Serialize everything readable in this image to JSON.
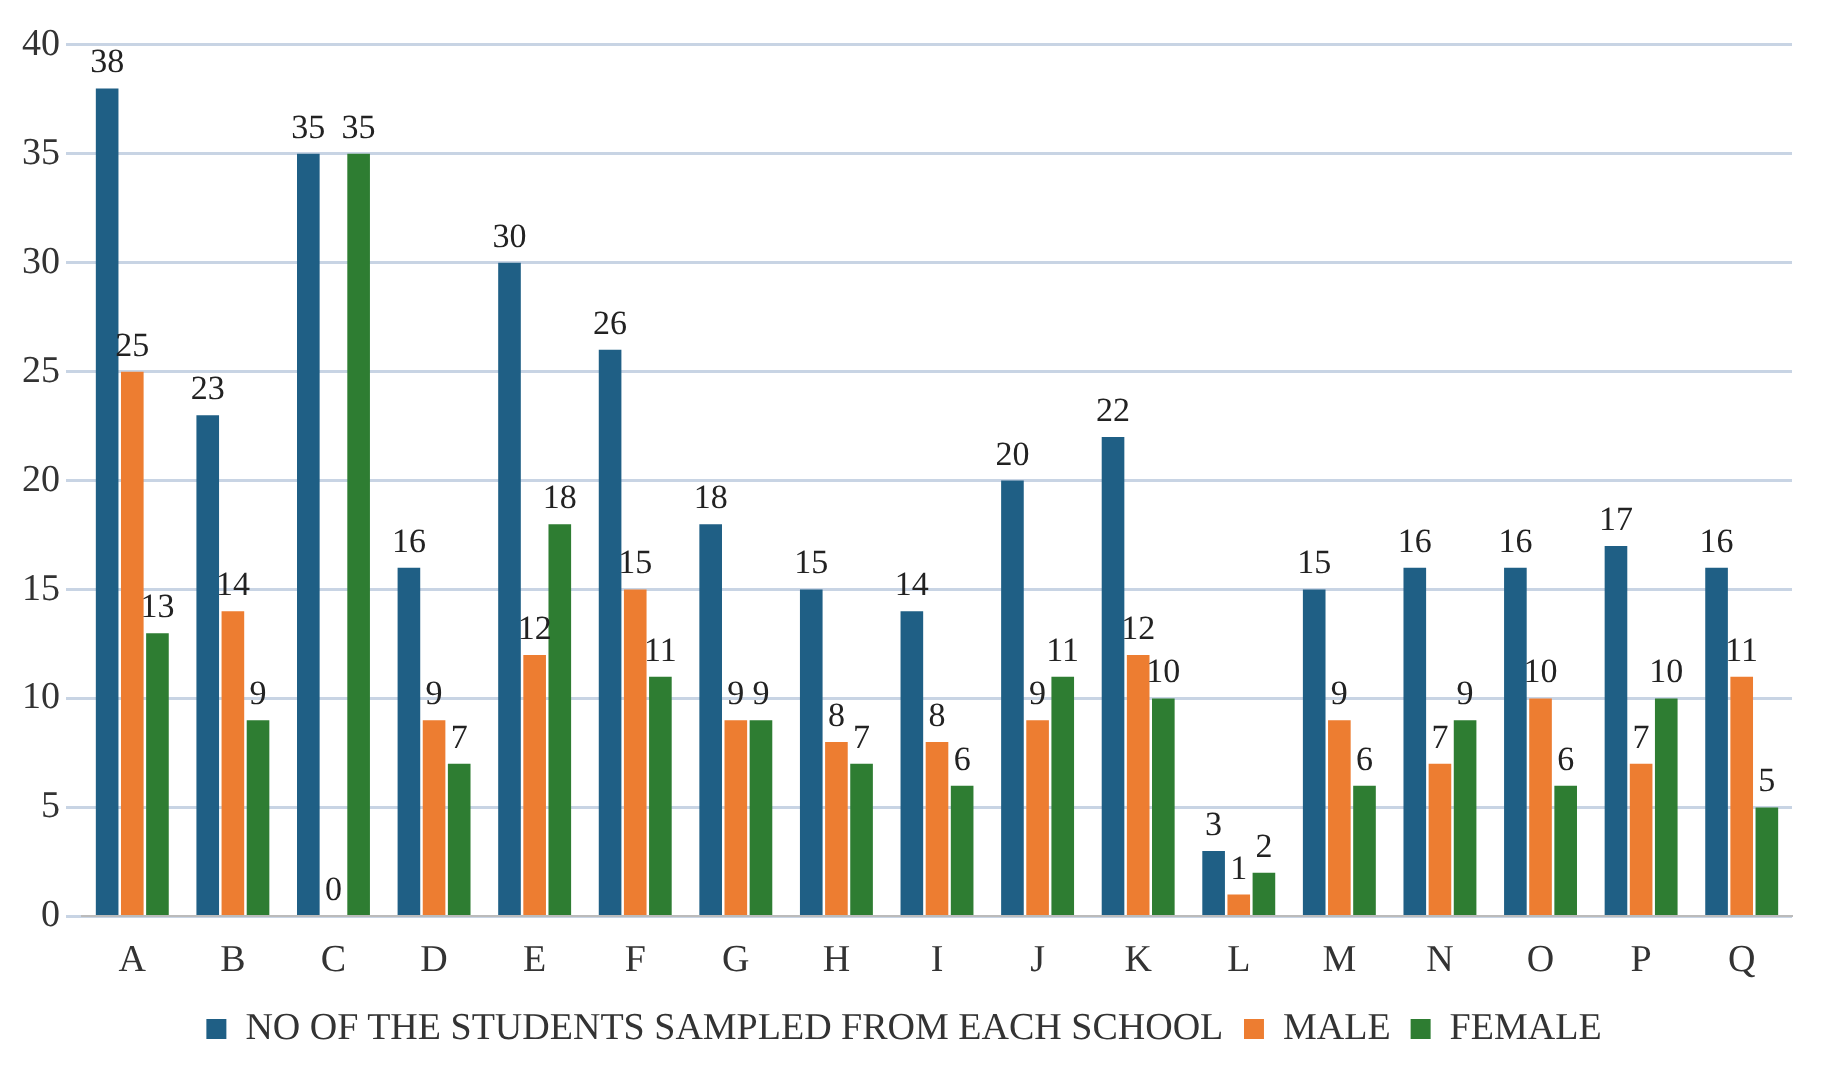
{
  "chart_data": {
    "type": "bar",
    "categories": [
      "A",
      "B",
      "C",
      "D",
      "E",
      "F",
      "G",
      "H",
      "I",
      "J",
      "K",
      "L",
      "M",
      "N",
      "O",
      "P",
      "Q"
    ],
    "series": [
      {
        "name": "NO OF THE STUDENTS SAMPLED FROM EACH SCHOOL",
        "color": "#1f5f85",
        "values": [
          38,
          23,
          35,
          16,
          30,
          26,
          18,
          15,
          14,
          20,
          22,
          3,
          15,
          16,
          16,
          17,
          16
        ]
      },
      {
        "name": "MALE",
        "color": "#ed7d31",
        "values": [
          25,
          14,
          0,
          9,
          12,
          15,
          9,
          8,
          8,
          9,
          12,
          1,
          9,
          7,
          10,
          7,
          11
        ]
      },
      {
        "name": "FEMALE",
        "color": "#2e7d32",
        "values": [
          13,
          9,
          35,
          7,
          18,
          11,
          9,
          7,
          6,
          11,
          10,
          2,
          6,
          9,
          6,
          10,
          5
        ]
      }
    ],
    "ylim": [
      0,
      40
    ],
    "yticks": [
      0,
      5,
      10,
      15,
      20,
      25,
      30,
      35,
      40
    ],
    "grid": "y",
    "legend": "bottom",
    "data_labels": true
  }
}
